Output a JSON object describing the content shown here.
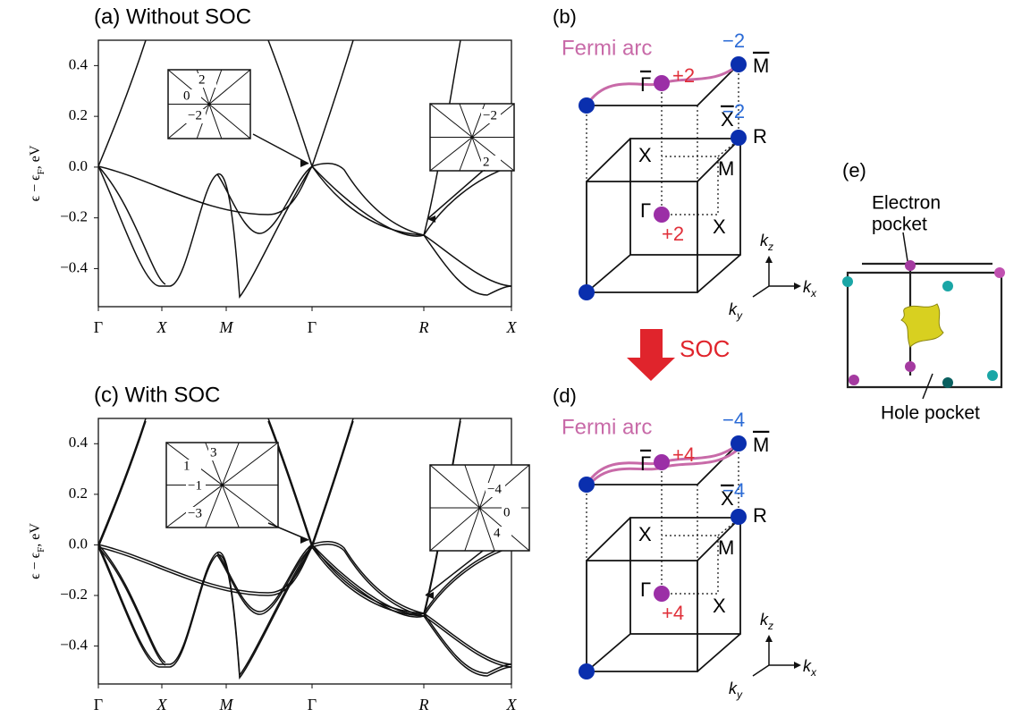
{
  "panels": [
    {
      "title": "(a) Without SOC",
      "ylabel": {
        "main": "ϵ − ϵ",
        "sub": "F",
        "tail": ", eV"
      },
      "ylim": [
        -0.55,
        0.5
      ],
      "yticks": [
        0.4,
        0.2,
        {
          "value": 0,
          "label": "0.0"
        },
        {
          "value": -0.2,
          "label": "−0.2"
        },
        {
          "value": -0.4,
          "label": "−0.4"
        }
      ],
      "xticks": [
        "Γ",
        "X",
        "M",
        "Γ",
        "R",
        "X"
      ],
      "insets": [
        [
          "2",
          "0",
          "−2"
        ],
        [
          "−2",
          "2"
        ]
      ]
    },
    {
      "title": "(c) With SOC",
      "ylabel": {
        "main": "ϵ − ϵ",
        "sub": "F",
        "tail": ", eV"
      },
      "ylim": [
        -0.55,
        0.5
      ],
      "yticks": [
        0.4,
        0.2,
        {
          "value": 0,
          "label": "0.0"
        },
        {
          "value": -0.2,
          "label": "−0.2"
        },
        {
          "value": -0.4,
          "label": "−0.4"
        }
      ],
      "xticks": [
        "Γ",
        "X",
        "M",
        "Γ",
        "R",
        "X"
      ],
      "insets": [
        [
          "3",
          "1",
          "−1",
          "−3"
        ],
        [
          "−4",
          "0",
          "4"
        ]
      ]
    }
  ],
  "bz": [
    {
      "label": "(b)",
      "arc": "Fermi arc",
      "top_charge": "−2",
      "r_charge": "−2",
      "surface_charge": "+2",
      "bulk_charge": "+2",
      "points": {
        "Mbar": "M",
        "Gbar": "Γ",
        "Xbar": "X",
        "R": "R",
        "X1": "X",
        "M": "M",
        "G": "Γ",
        "X2": "X"
      },
      "axes": {
        "kz": [
          "k",
          "z"
        ],
        "kx": [
          "k",
          "x"
        ],
        "ky": [
          "k",
          "y"
        ]
      }
    },
    {
      "label": "(d)",
      "arc": "Fermi arc",
      "top_charge": "−4",
      "r_charge": "−4",
      "surface_charge": "+4",
      "bulk_charge": "+4",
      "points": {
        "Mbar": "M",
        "Gbar": "Γ",
        "Xbar": "X",
        "R": "R",
        "X1": "X",
        "M": "M",
        "G": "Γ",
        "X2": "X"
      },
      "axes": {
        "kz": [
          "k",
          "z"
        ],
        "kx": [
          "k",
          "x"
        ],
        "ky": [
          "k",
          "y"
        ]
      }
    }
  ],
  "arrow": "SOC",
  "pocket": {
    "label": "(e)",
    "electron": [
      "Electron",
      "pocket"
    ],
    "hole": "Hole pocket"
  }
}
